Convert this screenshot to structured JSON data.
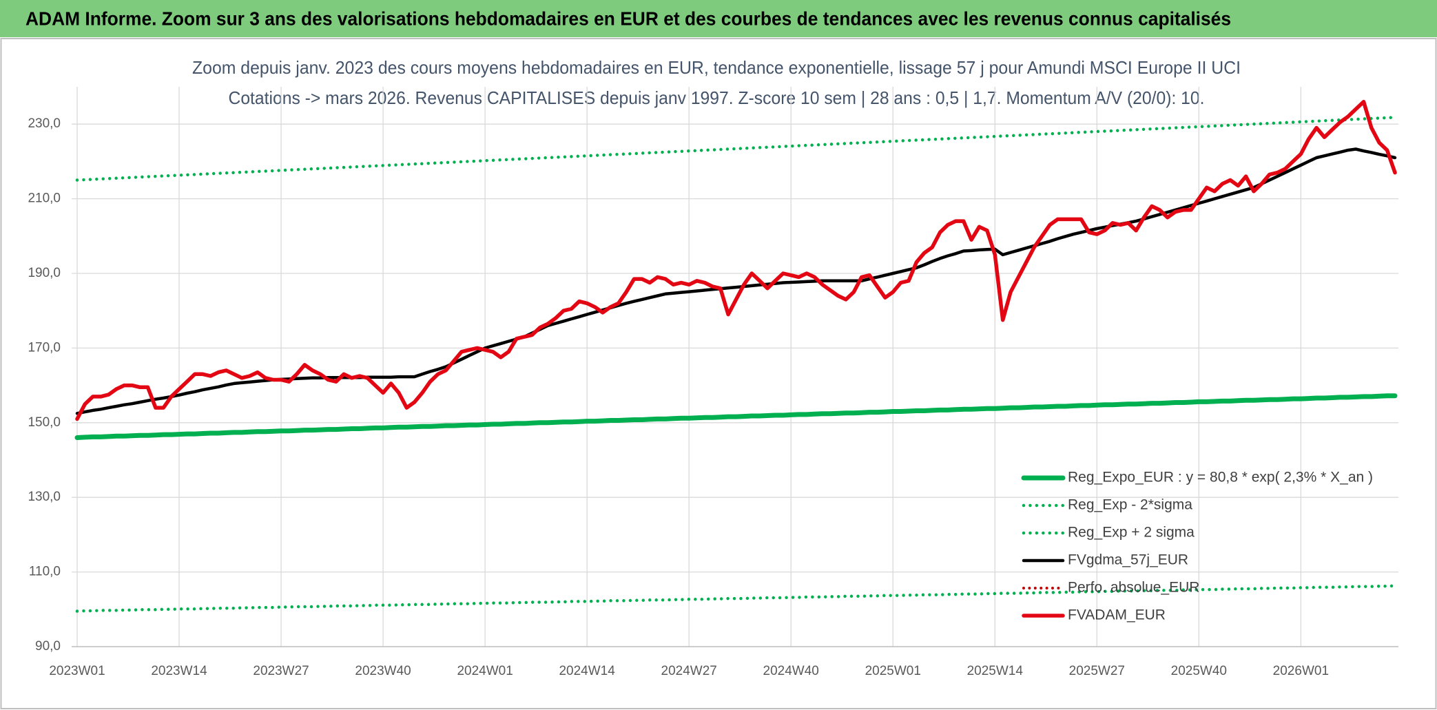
{
  "header": {
    "title": "ADAM Informe. Zoom sur 3 ans des valorisations hebdomadaires en EUR et des courbes de tendances avec les revenus connus capitalisés"
  },
  "chart_data": {
    "type": "line",
    "title": "Zoom depuis janv. 2023 des cours moyens hebdomadaires en EUR, tendance exponentielle, lissage 57 j pour Amundi MSCI Europe II UCI",
    "subtitle": "Cotations -> mars 2026. Revenus CAPITALISES depuis janv 1997. Z-score 10 sem | 28 ans : 0,5 | 1,7. Momentum A/V (20/0): 10.",
    "categories": [
      "2023W01",
      null,
      null,
      null,
      null,
      null,
      null,
      null,
      null,
      null,
      null,
      null,
      null,
      "2023W14",
      null,
      null,
      null,
      null,
      null,
      null,
      null,
      null,
      null,
      null,
      null,
      null,
      "2023W27",
      null,
      null,
      null,
      null,
      null,
      null,
      null,
      null,
      null,
      null,
      null,
      null,
      "2023W40",
      null,
      null,
      null,
      null,
      null,
      null,
      null,
      null,
      null,
      null,
      null,
      null,
      "2024W01",
      null,
      null,
      null,
      null,
      null,
      null,
      null,
      null,
      null,
      null,
      null,
      null,
      "2024W14",
      null,
      null,
      null,
      null,
      null,
      null,
      null,
      null,
      null,
      null,
      null,
      null,
      "2024W27",
      null,
      null,
      null,
      null,
      null,
      null,
      null,
      null,
      null,
      null,
      null,
      null,
      "2024W40",
      null,
      null,
      null,
      null,
      null,
      null,
      null,
      null,
      null,
      null,
      null,
      null,
      "2025W01",
      null,
      null,
      null,
      null,
      null,
      null,
      null,
      null,
      null,
      null,
      null,
      null,
      "2025W14",
      null,
      null,
      null,
      null,
      null,
      null,
      null,
      null,
      null,
      null,
      null,
      null,
      "2025W27",
      null,
      null,
      null,
      null,
      null,
      null,
      null,
      null,
      null,
      null,
      null,
      null,
      "2025W40",
      null,
      null,
      null,
      null,
      null,
      null,
      null,
      null,
      null,
      null,
      null,
      null,
      "2026W01",
      null,
      null,
      null,
      null,
      null,
      null,
      null,
      null,
      null,
      null,
      null,
      null
    ],
    "ylim": [
      90,
      240
    ],
    "yticks": [
      {
        "value": 90,
        "label": "90,0"
      },
      {
        "value": 110,
        "label": "110,0"
      },
      {
        "value": 130,
        "label": "130,0"
      },
      {
        "value": 150,
        "label": "150,0"
      },
      {
        "value": 170,
        "label": "170,0"
      },
      {
        "value": 190,
        "label": "190,0"
      },
      {
        "value": 210,
        "label": "210,0"
      },
      {
        "value": 230,
        "label": "230,0"
      }
    ],
    "grid": true,
    "legend": "lower-right",
    "series": [
      {
        "name": "Reg_Expo_EUR : y = 80,8 * exp( 2,3% *  X_an )",
        "color": "#00b050",
        "line_style": "solid",
        "values": [
          146,
          146.1,
          146.2,
          146.2,
          146.3,
          146.4,
          146.4,
          146.5,
          146.6,
          146.6,
          146.7,
          146.8,
          146.8,
          146.9,
          147,
          147,
          147.1,
          147.2,
          147.2,
          147.3,
          147.4,
          147.4,
          147.5,
          147.6,
          147.6,
          147.7,
          147.8,
          147.8,
          147.9,
          148,
          148,
          148.1,
          148.2,
          148.2,
          148.3,
          148.4,
          148.4,
          148.5,
          148.6,
          148.6,
          148.7,
          148.8,
          148.8,
          148.9,
          149,
          149,
          149.1,
          149.2,
          149.2,
          149.3,
          149.4,
          149.4,
          149.5,
          149.6,
          149.6,
          149.7,
          149.8,
          149.8,
          149.9,
          150,
          150,
          150.1,
          150.2,
          150.2,
          150.3,
          150.4,
          150.4,
          150.5,
          150.6,
          150.6,
          150.7,
          150.8,
          150.8,
          150.9,
          151,
          151,
          151.1,
          151.2,
          151.2,
          151.3,
          151.4,
          151.4,
          151.5,
          151.6,
          151.6,
          151.7,
          151.8,
          151.8,
          151.9,
          152,
          152,
          152.1,
          152.2,
          152.2,
          152.3,
          152.4,
          152.4,
          152.5,
          152.6,
          152.6,
          152.7,
          152.8,
          152.8,
          152.9,
          153,
          153,
          153.1,
          153.2,
          153.2,
          153.3,
          153.4,
          153.4,
          153.5,
          153.6,
          153.6,
          153.7,
          153.8,
          153.8,
          153.9,
          154,
          154,
          154.1,
          154.2,
          154.2,
          154.3,
          154.4,
          154.4,
          154.5,
          154.6,
          154.6,
          154.7,
          154.8,
          154.8,
          154.9,
          155,
          155,
          155.1,
          155.2,
          155.2,
          155.3,
          155.4,
          155.4,
          155.5,
          155.6,
          155.6,
          155.7,
          155.8,
          155.8,
          155.9,
          156,
          156,
          156.1,
          156.2,
          156.2,
          156.3,
          156.4,
          156.4,
          156.5,
          156.6,
          156.6,
          156.7,
          156.8,
          156.8,
          156.9,
          157,
          157,
          157.1,
          157.2,
          157.2
        ]
      },
      {
        "name": "Reg_Exp - 2*sigma",
        "color": "#00b050",
        "line_style": "dotted",
        "values": [
          99.5,
          99.6,
          99.6,
          99.7,
          99.7,
          99.7,
          99.8,
          99.8,
          99.9,
          99.9,
          99.9,
          100,
          100,
          100.1,
          100.1,
          100.1,
          100.2,
          100.2,
          100.3,
          100.3,
          100.3,
          100.4,
          100.4,
          100.5,
          100.5,
          100.5,
          100.6,
          100.6,
          100.7,
          100.7,
          100.7,
          100.8,
          100.8,
          100.9,
          100.9,
          100.9,
          101,
          101,
          101.1,
          101.1,
          101.1,
          101.2,
          101.2,
          101.3,
          101.3,
          101.3,
          101.4,
          101.4,
          101.5,
          101.5,
          101.5,
          101.6,
          101.6,
          101.7,
          101.7,
          101.7,
          101.8,
          101.8,
          101.9,
          101.9,
          101.9,
          102,
          102,
          102.1,
          102.1,
          102.1,
          102.2,
          102.2,
          102.3,
          102.3,
          102.3,
          102.4,
          102.4,
          102.5,
          102.5,
          102.5,
          102.6,
          102.6,
          102.7,
          102.7,
          102.7,
          102.8,
          102.8,
          102.9,
          102.9,
          102.9,
          103,
          103,
          103.1,
          103.1,
          103.1,
          103.2,
          103.2,
          103.3,
          103.3,
          103.3,
          103.4,
          103.4,
          103.5,
          103.5,
          103.5,
          103.6,
          103.6,
          103.7,
          103.7,
          103.7,
          103.8,
          103.8,
          103.9,
          103.9,
          103.9,
          104,
          104,
          104.1,
          104.1,
          104.1,
          104.2,
          104.2,
          104.3,
          104.3,
          104.3,
          104.4,
          104.4,
          104.5,
          104.5,
          104.5,
          104.6,
          104.6,
          104.7,
          104.7,
          104.7,
          104.8,
          104.8,
          104.9,
          104.9,
          104.9,
          105,
          105,
          105.1,
          105.1,
          105.1,
          105.2,
          105.2,
          105.3,
          105.3,
          105.3,
          105.4,
          105.4,
          105.5,
          105.5,
          105.5,
          105.6,
          105.6,
          105.7,
          105.7,
          105.7,
          105.8,
          105.8,
          105.9,
          105.9,
          105.9,
          106,
          106,
          106.1,
          106.1,
          106.1,
          106.2,
          106.2,
          106.3
        ]
      },
      {
        "name": "Reg_Exp + 2 sigma",
        "color": "#00b050",
        "line_style": "dotted",
        "values": [
          215,
          215.1,
          215.2,
          215.3,
          215.4,
          215.5,
          215.6,
          215.7,
          215.8,
          215.9,
          216,
          216.1,
          216.2,
          216.3,
          216.4,
          216.5,
          216.6,
          216.7,
          216.8,
          216.9,
          217,
          217.1,
          217.2,
          217.3,
          217.4,
          217.5,
          217.6,
          217.7,
          217.8,
          217.9,
          218,
          218.1,
          218.2,
          218.3,
          218.4,
          218.5,
          218.6,
          218.7,
          218.8,
          218.9,
          219,
          219.1,
          219.2,
          219.3,
          219.4,
          219.5,
          219.6,
          219.7,
          219.8,
          219.9,
          220,
          220.1,
          220.2,
          220.3,
          220.4,
          220.5,
          220.6,
          220.7,
          220.8,
          220.9,
          221,
          221.1,
          221.2,
          221.3,
          221.4,
          221.5,
          221.6,
          221.7,
          221.8,
          221.9,
          222,
          222.1,
          222.2,
          222.3,
          222.4,
          222.5,
          222.6,
          222.7,
          222.8,
          222.9,
          223,
          223.1,
          223.2,
          223.3,
          223.4,
          223.5,
          223.6,
          223.7,
          223.8,
          223.9,
          224,
          224.1,
          224.2,
          224.3,
          224.4,
          224.5,
          224.6,
          224.7,
          224.8,
          224.9,
          225,
          225.1,
          225.2,
          225.3,
          225.4,
          225.5,
          225.6,
          225.7,
          225.8,
          225.9,
          226,
          226.1,
          226.2,
          226.3,
          226.4,
          226.5,
          226.6,
          226.7,
          226.8,
          226.9,
          227,
          227.1,
          227.2,
          227.3,
          227.4,
          227.5,
          227.6,
          227.7,
          227.8,
          227.9,
          228,
          228.1,
          228.2,
          228.3,
          228.4,
          228.5,
          228.6,
          228.7,
          228.8,
          228.9,
          229,
          229.1,
          229.2,
          229.3,
          229.4,
          229.5,
          229.6,
          229.7,
          229.8,
          229.9,
          230,
          230.1,
          230.2,
          230.3,
          230.4,
          230.5,
          230.6,
          230.7,
          230.8,
          230.9,
          231,
          231.1,
          231.2,
          231.3,
          231.4,
          231.5,
          231.6,
          231.7,
          231.8
        ]
      },
      {
        "name": "FVgdma_57j_EUR",
        "color": "#000000",
        "line_style": "solid",
        "values": [
          152.5,
          152.9,
          153.3,
          153.6,
          154,
          154.4,
          154.8,
          155.1,
          155.5,
          155.9,
          156.3,
          156.6,
          157,
          157.4,
          157.9,
          158.3,
          158.8,
          159.2,
          159.6,
          160.1,
          160.5,
          160.7,
          160.9,
          161.1,
          161.3,
          161.5,
          161.6,
          161.7,
          161.8,
          161.9,
          162,
          162,
          162.1,
          162.1,
          162.1,
          162.1,
          162.1,
          162.2,
          162.2,
          162.2,
          162.2,
          162.3,
          162.3,
          162.3,
          163,
          163.7,
          164.3,
          165,
          166,
          167,
          168,
          169,
          170,
          170.6,
          171.2,
          171.8,
          172.4,
          173,
          174,
          175,
          176,
          176.6,
          177.2,
          177.8,
          178.4,
          179,
          179.6,
          180.2,
          180.8,
          181.4,
          182,
          182.5,
          183,
          183.5,
          184,
          184.5,
          184.7,
          184.9,
          185.1,
          185.3,
          185.5,
          185.7,
          185.9,
          186.1,
          186.3,
          186.5,
          186.7,
          186.9,
          187.1,
          187.3,
          187.5,
          187.6,
          187.7,
          187.8,
          187.9,
          188,
          188,
          188,
          188,
          188,
          188,
          188.5,
          189,
          189.5,
          190,
          190.5,
          191,
          191.5,
          192.3,
          193.2,
          194,
          194.7,
          195.3,
          196,
          196.1,
          196.3,
          196.4,
          196.5,
          195,
          195.6,
          196.2,
          196.8,
          197.4,
          198,
          198.6,
          199.3,
          199.9,
          200.5,
          201,
          201.5,
          202,
          202.4,
          202.8,
          203.2,
          203.6,
          204,
          204.6,
          205.2,
          205.8,
          206.4,
          207,
          207.6,
          208.2,
          208.8,
          209.4,
          210,
          210.6,
          211.2,
          211.8,
          212.4,
          213,
          214,
          215,
          216,
          217,
          218,
          219,
          220,
          221,
          221.5,
          222,
          222.5,
          223,
          223.3,
          222.8,
          222.4,
          221.9,
          221.5,
          221
        ]
      },
      {
        "name": "Perfo. absolue_EUR",
        "color": "#c00000",
        "line_style": "dotted"
      },
      {
        "name": "FVADAM_EUR",
        "color": "#e30613",
        "line_style": "solid",
        "values": [
          151,
          155,
          157,
          157,
          157.5,
          159,
          160,
          160,
          159.5,
          159.5,
          154,
          154,
          157,
          159,
          161,
          163,
          163,
          162.5,
          163.5,
          164,
          163,
          162,
          162.5,
          163.5,
          162,
          161.5,
          161.5,
          161,
          163,
          165.5,
          164,
          163,
          161.5,
          161,
          163,
          162,
          162.5,
          162,
          160,
          158,
          160.5,
          158,
          154,
          155.5,
          158,
          161,
          163,
          164,
          166.5,
          169,
          169.5,
          170,
          169.5,
          169,
          167.5,
          169,
          172.5,
          173,
          173.5,
          175.5,
          176.5,
          178,
          180,
          180.5,
          182.5,
          182,
          181,
          179.5,
          181,
          182,
          185,
          188.5,
          188.5,
          187.5,
          189,
          188.5,
          187,
          187.5,
          187,
          188,
          187.5,
          186.5,
          186,
          179,
          183,
          187,
          190,
          188,
          186,
          188,
          190,
          189.5,
          189,
          190,
          189,
          187,
          185.5,
          184,
          183,
          185,
          189,
          189.5,
          186.5,
          183.5,
          185,
          187.5,
          188,
          193,
          195.5,
          197,
          201,
          203,
          204,
          204,
          199,
          202.5,
          201.5,
          195,
          177.5,
          185,
          189,
          193,
          197,
          200,
          203,
          204.5,
          204.5,
          204.5,
          204.5,
          201,
          200.5,
          201.5,
          203.5,
          203,
          203.5,
          201.5,
          205,
          208,
          207,
          205,
          206.5,
          207,
          207,
          210,
          213,
          212,
          214,
          215,
          213.5,
          216,
          212,
          214,
          216.5,
          217,
          218,
          220,
          222,
          226,
          229,
          226.5,
          228.5,
          230.5,
          232,
          234,
          236,
          229,
          225,
          223,
          217
        ]
      }
    ]
  }
}
